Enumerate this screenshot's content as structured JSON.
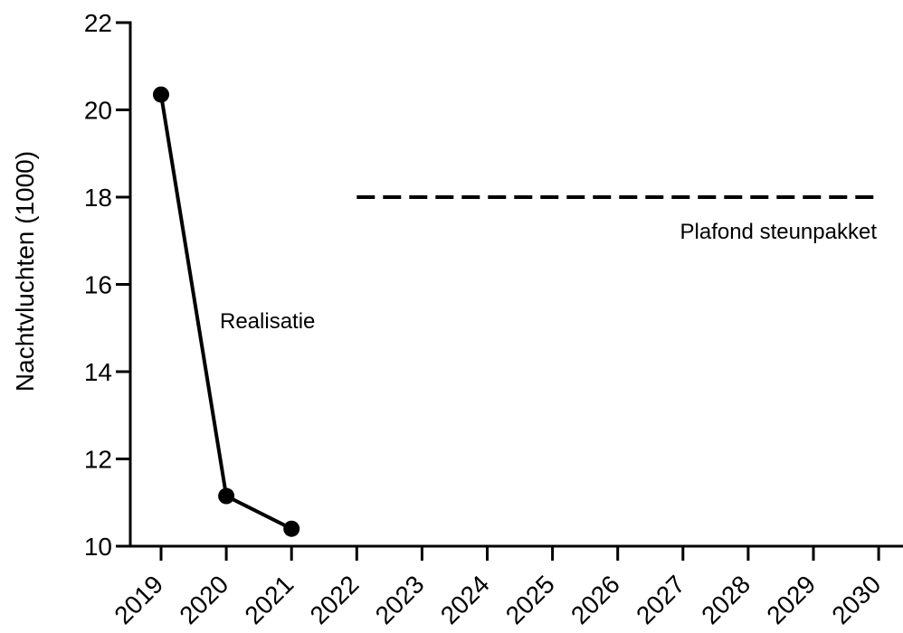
{
  "chart_data": {
    "type": "line",
    "title": "",
    "xlabel": "",
    "ylabel": "Nachtvluchten (1000)",
    "ylim": [
      10,
      22
    ],
    "yticks": [
      10,
      12,
      14,
      16,
      18,
      20,
      22
    ],
    "categories": [
      "2019",
      "2020",
      "2021",
      "2022",
      "2023",
      "2024",
      "2025",
      "2026",
      "2027",
      "2028",
      "2029",
      "2030"
    ],
    "grid": false,
    "legend": "none",
    "series": [
      {
        "name": "Realisatie",
        "style": "solid-with-markers",
        "color": "#000000",
        "points": [
          {
            "x": "2019",
            "y": 20.35
          },
          {
            "x": "2020",
            "y": 11.15
          },
          {
            "x": "2021",
            "y": 10.4
          }
        ]
      },
      {
        "name": "Plafond steunpakket",
        "style": "dashed",
        "color": "#000000",
        "points": [
          {
            "x": "2022",
            "y": 18.0
          },
          {
            "x": "2030",
            "y": 18.0
          }
        ]
      }
    ],
    "annotations": [
      {
        "text": "Realisatie",
        "series": "Realisatie"
      },
      {
        "text": "Plafond steunpakket",
        "series": "Plafond steunpakket"
      }
    ]
  }
}
